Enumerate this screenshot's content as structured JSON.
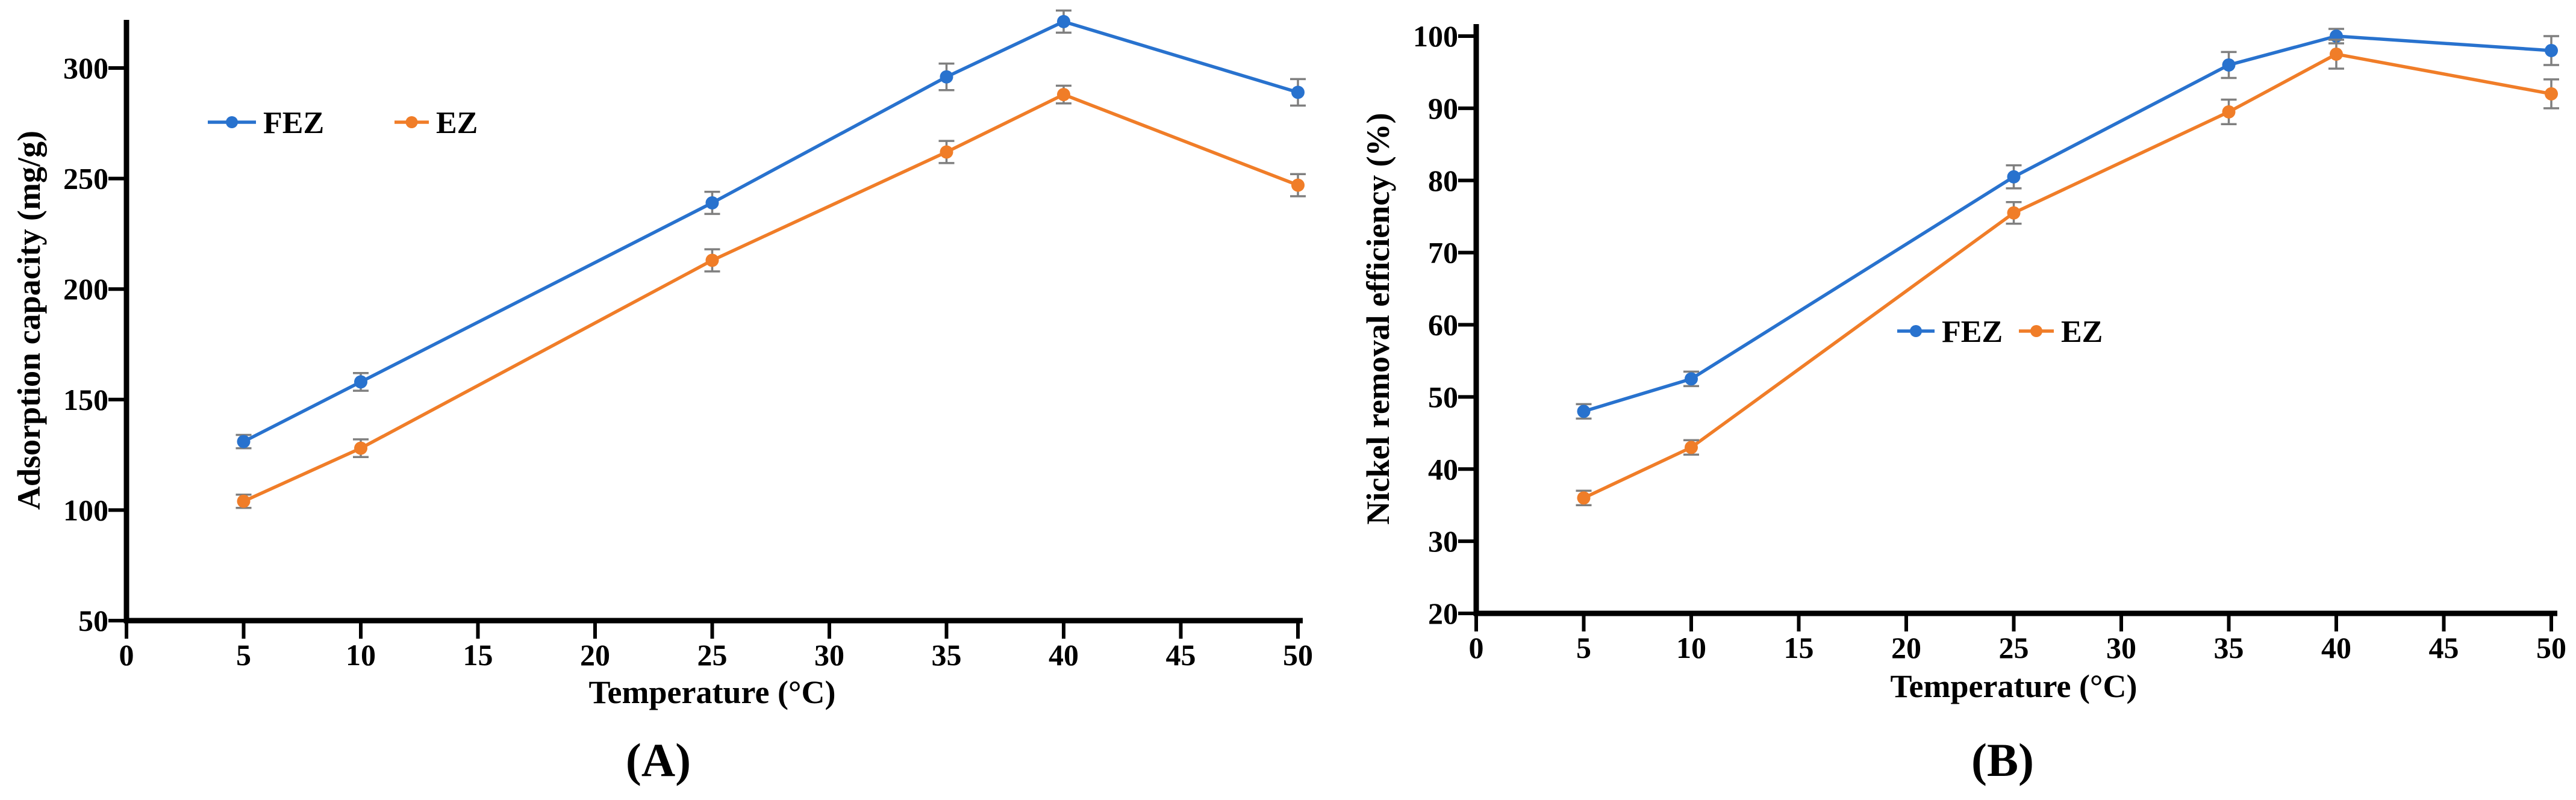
{
  "figure": {
    "background": "#ffffff",
    "text_color": "#000000",
    "error_bar_color": "#7f7f7f"
  },
  "chart_data": [
    {
      "type": "line",
      "panel": "A",
      "caption": "(A)",
      "xlabel": "Temperature (°C)",
      "ylabel": "Adsorption capacity (mg/g)",
      "x": [
        5,
        10,
        25,
        35,
        40,
        50
      ],
      "xlim": [
        0,
        50
      ],
      "xticks": [
        0,
        5,
        10,
        15,
        20,
        25,
        30,
        35,
        40,
        45,
        50
      ],
      "ylim": [
        50,
        322
      ],
      "yticks": [
        50,
        100,
        150,
        200,
        250,
        300
      ],
      "grid": false,
      "legend_position": "inside-upper-left",
      "series": [
        {
          "name": "FEZ",
          "color": "#2872ce",
          "values": [
            131,
            158,
            239,
            296,
            321,
            289
          ],
          "errors": [
            3,
            4,
            5,
            6,
            5,
            6
          ]
        },
        {
          "name": "EZ",
          "color": "#f07d28",
          "values": [
            104,
            128,
            213,
            262,
            288,
            247
          ],
          "errors": [
            3,
            4,
            5,
            5,
            4,
            5
          ]
        }
      ]
    },
    {
      "type": "line",
      "panel": "B",
      "caption": "(B)",
      "xlabel": "Temperature (°C)",
      "ylabel": "Nickel removal efficiency (%)",
      "x": [
        5,
        10,
        25,
        35,
        40,
        50
      ],
      "xlim": [
        0,
        50
      ],
      "xticks": [
        0,
        5,
        10,
        15,
        20,
        25,
        30,
        35,
        40,
        45,
        50
      ],
      "ylim": [
        20,
        100
      ],
      "yticks": [
        20,
        30,
        40,
        50,
        60,
        70,
        80,
        90,
        100
      ],
      "grid": false,
      "legend_position": "inside-middle-right",
      "series": [
        {
          "name": "FEZ",
          "color": "#2872ce",
          "values": [
            48,
            52.5,
            80.5,
            96,
            100,
            98
          ],
          "errors": [
            1,
            1,
            1.6,
            1.8,
            1,
            2
          ]
        },
        {
          "name": "EZ",
          "color": "#f07d28",
          "values": [
            36,
            43,
            75.5,
            89.5,
            97.5,
            92
          ],
          "errors": [
            1,
            1,
            1.5,
            1.7,
            2,
            2
          ]
        }
      ]
    }
  ]
}
